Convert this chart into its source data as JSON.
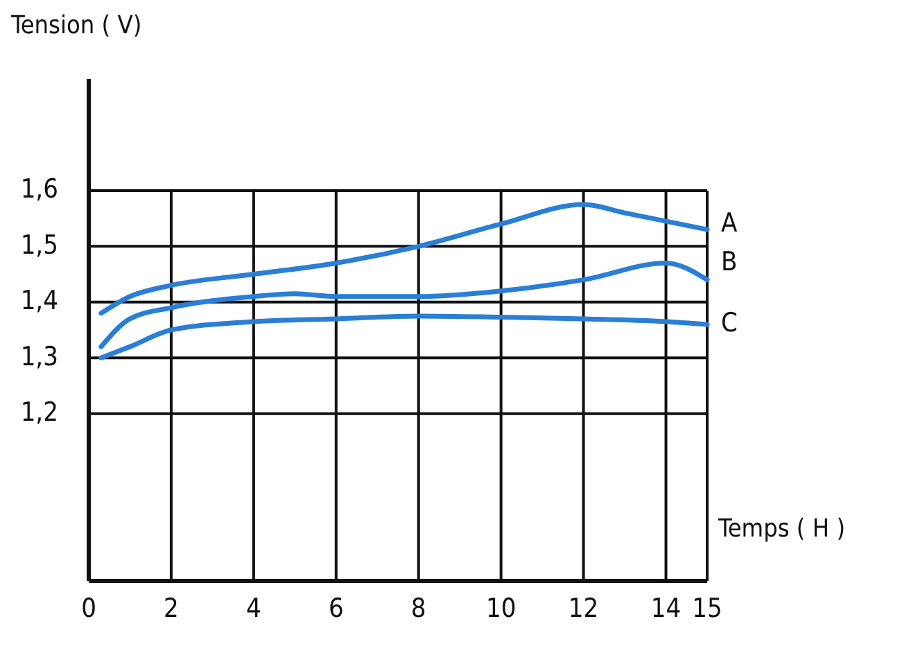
{
  "chart_data": {
    "type": "line",
    "xlabel": "Temps ( H )",
    "ylabel": "Tension ( V)",
    "xlim": [
      0,
      15
    ],
    "ylim": [
      0.9,
      1.8
    ],
    "xticks": [
      0,
      2,
      4,
      6,
      8,
      10,
      12,
      14,
      15
    ],
    "yticks": [
      {
        "value": 1.2,
        "label": "1,2"
      },
      {
        "value": 1.3,
        "label": "1,3"
      },
      {
        "value": 1.4,
        "label": "1,4"
      },
      {
        "value": 1.5,
        "label": "1,5"
      },
      {
        "value": 1.6,
        "label": "1,6"
      }
    ],
    "grid": true,
    "line_style": "solid",
    "series": [
      {
        "name": "A",
        "color": "#2a7fd4",
        "x": [
          0.3,
          1,
          2,
          4,
          6,
          8,
          10,
          12,
          13,
          14,
          15
        ],
        "values": [
          1.38,
          1.41,
          1.43,
          1.45,
          1.47,
          1.5,
          1.54,
          1.575,
          1.56,
          1.545,
          1.53
        ]
      },
      {
        "name": "B",
        "color": "#2a7fd4",
        "x": [
          0.3,
          1,
          2,
          4,
          5,
          6,
          8,
          10,
          12,
          14,
          15
        ],
        "values": [
          1.32,
          1.37,
          1.39,
          1.41,
          1.415,
          1.41,
          1.41,
          1.42,
          1.44,
          1.47,
          1.44
        ]
      },
      {
        "name": "C",
        "color": "#2a7fd4",
        "x": [
          0.3,
          1,
          2,
          4,
          6,
          8,
          10,
          12,
          14,
          15
        ],
        "values": [
          1.3,
          1.32,
          1.35,
          1.365,
          1.37,
          1.375,
          1.373,
          1.37,
          1.365,
          1.36
        ]
      }
    ]
  }
}
